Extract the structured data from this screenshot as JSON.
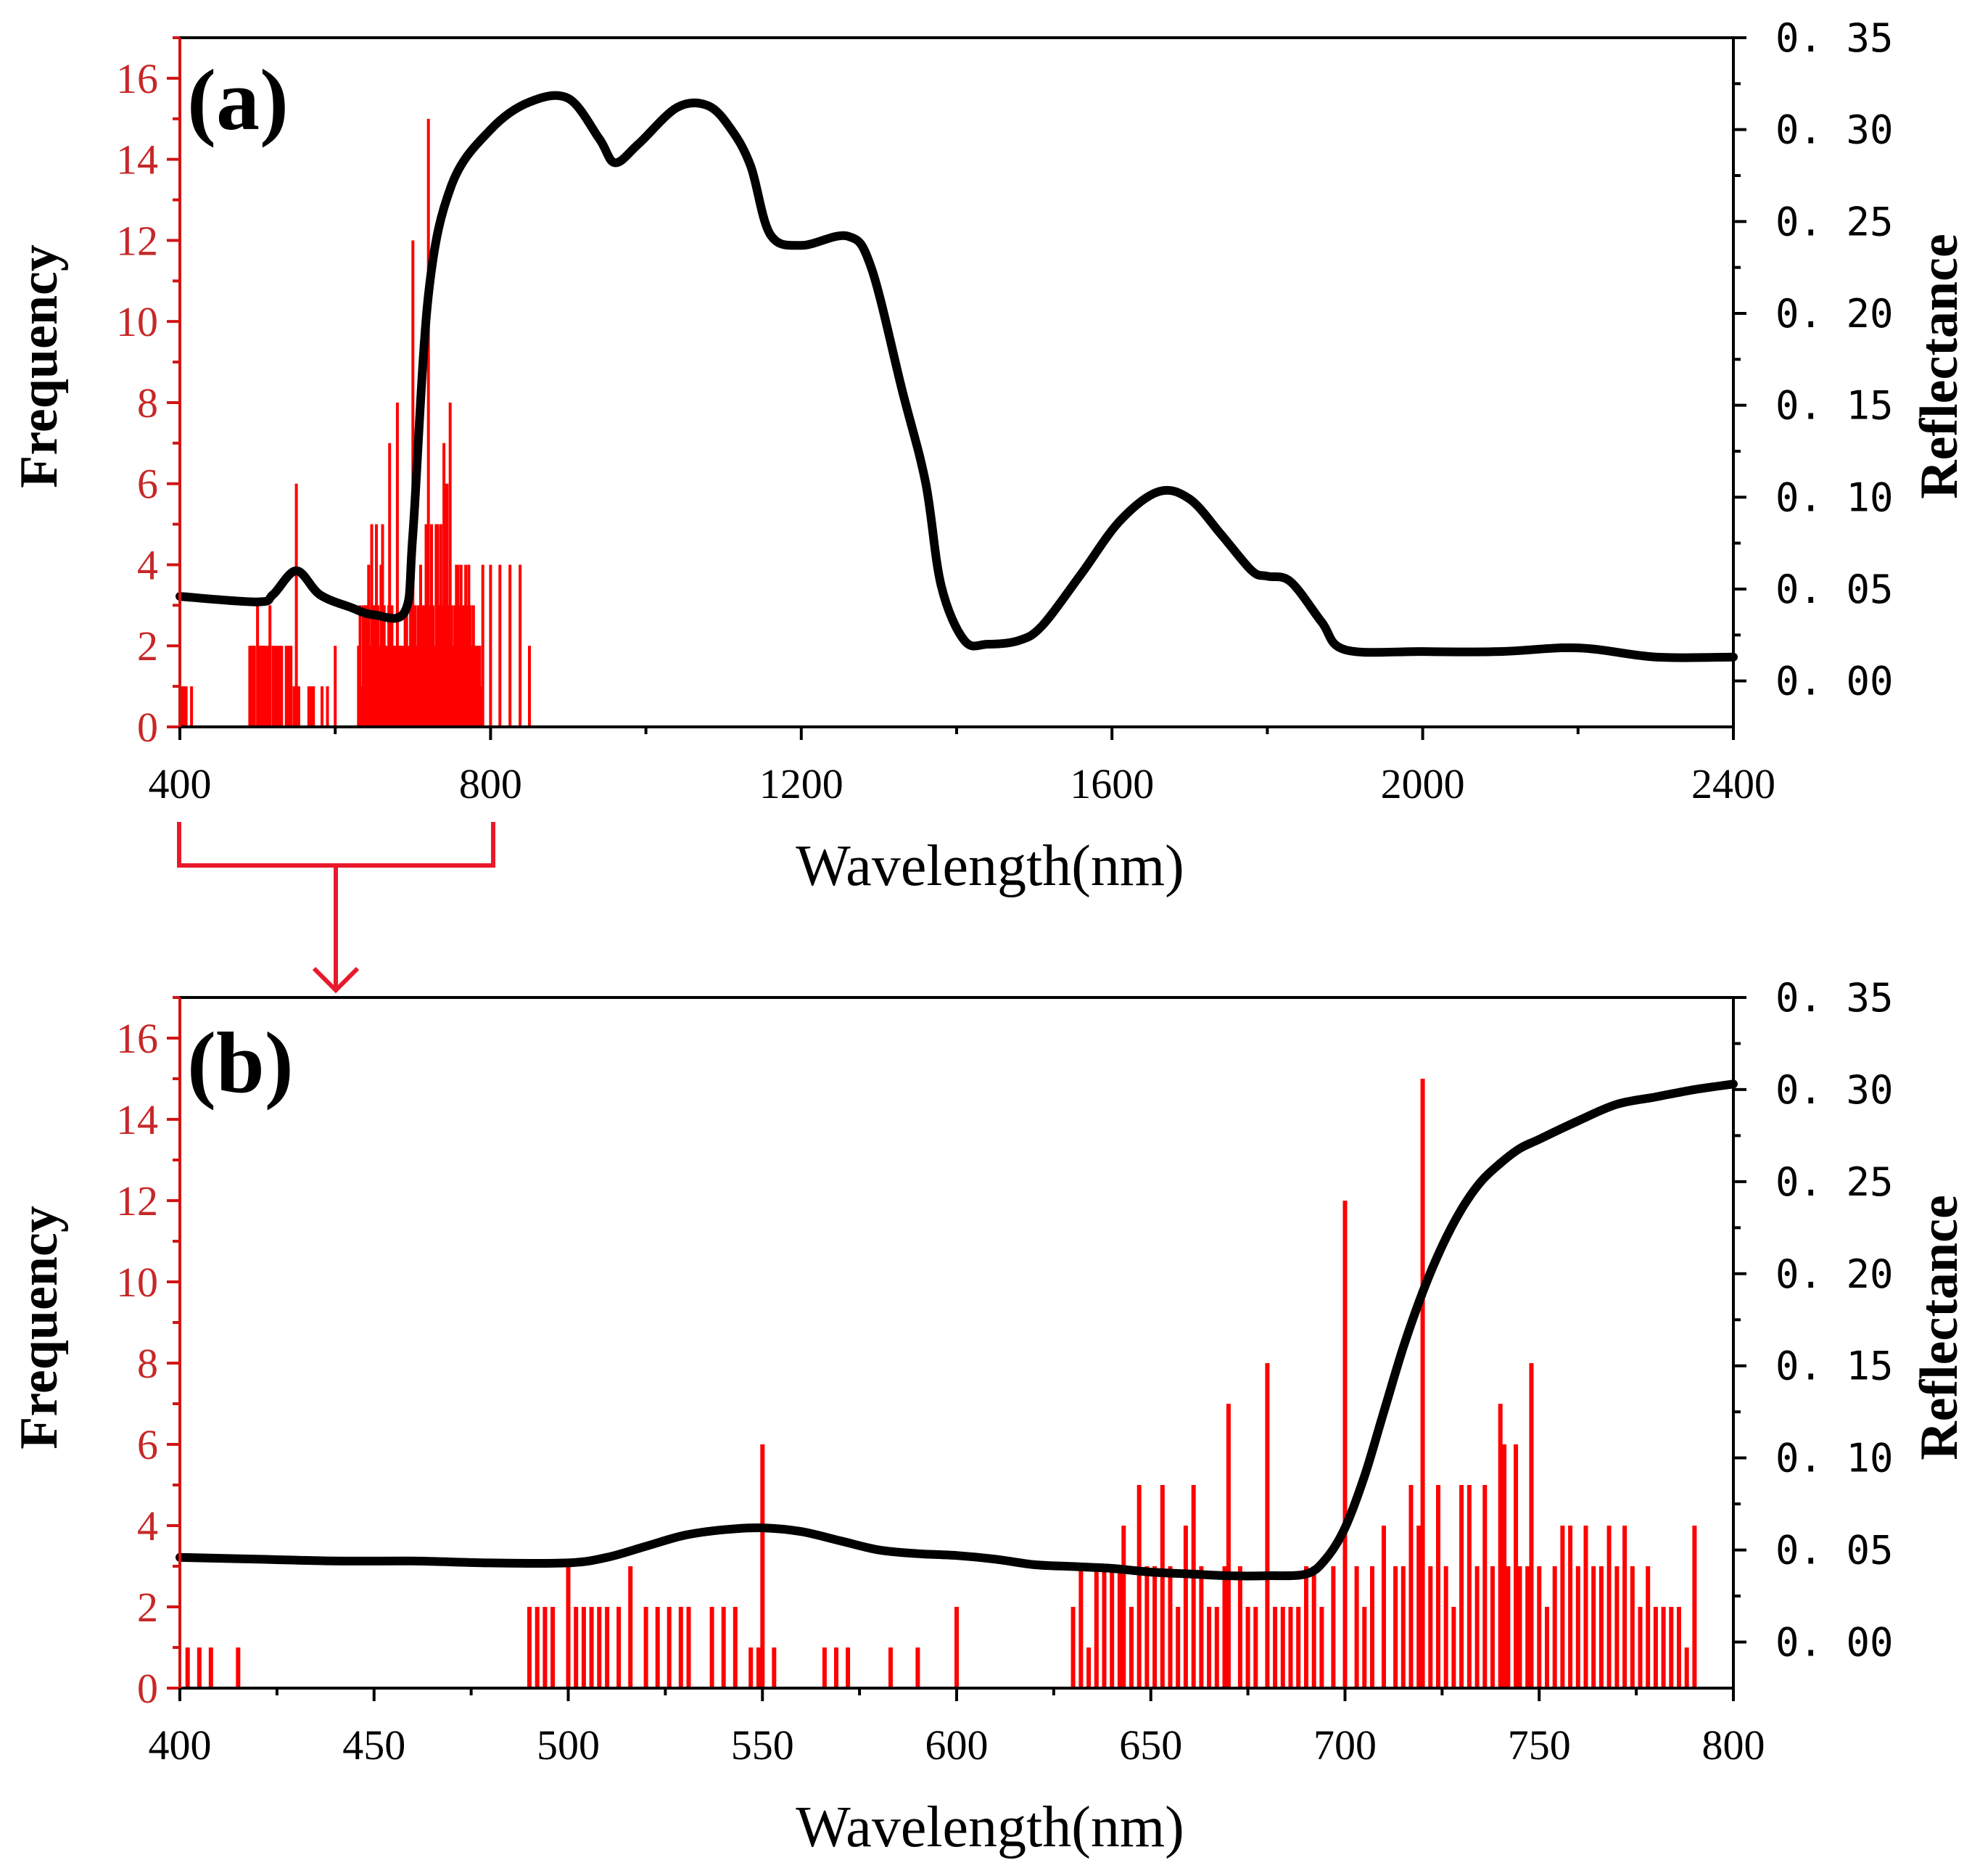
{
  "chart_data": [
    {
      "type": "bar",
      "panel_label": "(a)",
      "xlabel": "Wavelength(nm)",
      "ylabel": "Frequency",
      "y2label": "Reflectance",
      "xlim": [
        400,
        2400
      ],
      "ylim": [
        0,
        17
      ],
      "y2lim": [
        -0.025,
        0.35
      ],
      "xticks": [
        "400",
        "800",
        "1200",
        "1600",
        "2000",
        "2400"
      ],
      "yticks": [
        "0",
        "2",
        "4",
        "6",
        "8",
        "10",
        "12",
        "14",
        "16"
      ],
      "y2ticks": [
        "0. 00",
        "0. 05",
        "0. 10",
        "0. 15",
        "0. 20",
        "0. 25",
        "0. 30",
        "0. 35"
      ],
      "bar_color": "#ff0000",
      "line_color": "#000000",
      "bars": [
        [
          402,
          1
        ],
        [
          405,
          1
        ],
        [
          408,
          1
        ],
        [
          415,
          1
        ],
        [
          490,
          2
        ],
        [
          492,
          2
        ],
        [
          494,
          2
        ],
        [
          496,
          2
        ],
        [
          500,
          3
        ],
        [
          502,
          2
        ],
        [
          504,
          2
        ],
        [
          506,
          2
        ],
        [
          508,
          2
        ],
        [
          510,
          2
        ],
        [
          513,
          2
        ],
        [
          516,
          3
        ],
        [
          520,
          2
        ],
        [
          523,
          2
        ],
        [
          526,
          2
        ],
        [
          529,
          2
        ],
        [
          531,
          2
        ],
        [
          537,
          2
        ],
        [
          540,
          2
        ],
        [
          543,
          2
        ],
        [
          547,
          1
        ],
        [
          549,
          1
        ],
        [
          550,
          6
        ],
        [
          553,
          1
        ],
        [
          566,
          1
        ],
        [
          569,
          1
        ],
        [
          572,
          1
        ],
        [
          583,
          1
        ],
        [
          590,
          1
        ],
        [
          600,
          2
        ],
        [
          630,
          2
        ],
        [
          632,
          3
        ],
        [
          634,
          1
        ],
        [
          636,
          3
        ],
        [
          638,
          3
        ],
        [
          640,
          3
        ],
        [
          642,
          3
        ],
        [
          643,
          4
        ],
        [
          645,
          2
        ],
        [
          647,
          5
        ],
        [
          649,
          3
        ],
        [
          651,
          3
        ],
        [
          653,
          5
        ],
        [
          655,
          3
        ],
        [
          657,
          2
        ],
        [
          659,
          4
        ],
        [
          661,
          5
        ],
        [
          663,
          3
        ],
        [
          665,
          2
        ],
        [
          667,
          2
        ],
        [
          669,
          3
        ],
        [
          670,
          7
        ],
        [
          673,
          3
        ],
        [
          675,
          2
        ],
        [
          677,
          2
        ],
        [
          680,
          8
        ],
        [
          682,
          2
        ],
        [
          684,
          2
        ],
        [
          686,
          2
        ],
        [
          688,
          2
        ],
        [
          690,
          3
        ],
        [
          692,
          3
        ],
        [
          694,
          2
        ],
        [
          697,
          3
        ],
        [
          700,
          12
        ],
        [
          703,
          3
        ],
        [
          705,
          2
        ],
        [
          707,
          3
        ],
        [
          710,
          4
        ],
        [
          713,
          3
        ],
        [
          715,
          3
        ],
        [
          717,
          5
        ],
        [
          719,
          4
        ],
        [
          720,
          15
        ],
        [
          722,
          3
        ],
        [
          724,
          5
        ],
        [
          726,
          3
        ],
        [
          728,
          2
        ],
        [
          730,
          5
        ],
        [
          732,
          5
        ],
        [
          734,
          3
        ],
        [
          736,
          5
        ],
        [
          738,
          3
        ],
        [
          740,
          7
        ],
        [
          741,
          6
        ],
        [
          742,
          3
        ],
        [
          744,
          6
        ],
        [
          745,
          3
        ],
        [
          747,
          3
        ],
        [
          748,
          8
        ],
        [
          750,
          3
        ],
        [
          752,
          2
        ],
        [
          754,
          3
        ],
        [
          756,
          4
        ],
        [
          758,
          4
        ],
        [
          760,
          3
        ],
        [
          762,
          4
        ],
        [
          764,
          3
        ],
        [
          766,
          3
        ],
        [
          768,
          4
        ],
        [
          770,
          3
        ],
        [
          772,
          4
        ],
        [
          774,
          3
        ],
        [
          776,
          2
        ],
        [
          778,
          3
        ],
        [
          780,
          2
        ],
        [
          782,
          2
        ],
        [
          784,
          2
        ],
        [
          786,
          2
        ],
        [
          788,
          1
        ],
        [
          790,
          4
        ],
        [
          800,
          4
        ],
        [
          812,
          4
        ],
        [
          825,
          4
        ],
        [
          838,
          4
        ],
        [
          850,
          2
        ]
      ],
      "reflectance_curve": {
        "x": [
          400,
          500,
          520,
          550,
          580,
          620,
          650,
          690,
          700,
          720,
          750,
          800,
          850,
          900,
          940,
          960,
          990,
          1040,
          1080,
          1110,
          1135,
          1160,
          1200,
          1260,
          1290,
          1330,
          1360,
          1380,
          1410,
          1440,
          1480,
          1510,
          1560,
          1610,
          1660,
          1700,
          1740,
          1780,
          1800,
          1830,
          1870,
          1900,
          2000,
          2100,
          2200,
          2300,
          2400
        ],
        "y": [
          0.046,
          0.043,
          0.047,
          0.06,
          0.047,
          0.04,
          0.036,
          0.038,
          0.08,
          0.21,
          0.27,
          0.3,
          0.315,
          0.317,
          0.295,
          0.282,
          0.292,
          0.312,
          0.313,
          0.3,
          0.28,
          0.243,
          0.237,
          0.242,
          0.225,
          0.158,
          0.108,
          0.052,
          0.022,
          0.02,
          0.022,
          0.03,
          0.058,
          0.087,
          0.103,
          0.099,
          0.08,
          0.06,
          0.057,
          0.054,
          0.032,
          0.017,
          0.016,
          0.016,
          0.018,
          0.013,
          0.013
        ]
      }
    },
    {
      "type": "bar",
      "panel_label": "(b)",
      "xlabel": "Wavelength(nm)",
      "ylabel": "Frequency",
      "y2label": "Reflectance",
      "xlim": [
        400,
        800
      ],
      "ylim": [
        0,
        17
      ],
      "y2lim": [
        -0.025,
        0.35
      ],
      "xticks": [
        "400",
        "450",
        "500",
        "550",
        "600",
        "650",
        "700",
        "750",
        "800"
      ],
      "yticks": [
        "0",
        "2",
        "4",
        "6",
        "8",
        "10",
        "12",
        "14",
        "16"
      ],
      "y2ticks": [
        "0. 00",
        "0. 05",
        "0. 10",
        "0. 15",
        "0. 20",
        "0. 25",
        "0. 30",
        "0. 35"
      ],
      "bar_color": "#ff0000",
      "line_color": "#000000",
      "bars": [
        [
          402,
          1
        ],
        [
          405,
          1
        ],
        [
          408,
          1
        ],
        [
          415,
          1
        ],
        [
          490,
          2
        ],
        [
          492,
          2
        ],
        [
          494,
          2
        ],
        [
          496,
          2
        ],
        [
          500,
          3
        ],
        [
          502,
          2
        ],
        [
          504,
          2
        ],
        [
          506,
          2
        ],
        [
          508,
          2
        ],
        [
          510,
          2
        ],
        [
          513,
          2
        ],
        [
          516,
          3
        ],
        [
          520,
          2
        ],
        [
          523,
          2
        ],
        [
          526,
          2
        ],
        [
          529,
          2
        ],
        [
          531,
          2
        ],
        [
          537,
          2
        ],
        [
          540,
          2
        ],
        [
          543,
          2
        ],
        [
          547,
          1
        ],
        [
          549,
          1
        ],
        [
          550,
          6
        ],
        [
          553,
          1
        ],
        [
          566,
          1
        ],
        [
          569,
          1
        ],
        [
          572,
          1
        ],
        [
          583,
          1
        ],
        [
          590,
          1
        ],
        [
          600,
          2
        ],
        [
          630,
          2
        ],
        [
          632,
          3
        ],
        [
          634,
          1
        ],
        [
          636,
          3
        ],
        [
          638,
          3
        ],
        [
          640,
          3
        ],
        [
          642,
          3
        ],
        [
          643,
          4
        ],
        [
          645,
          2
        ],
        [
          647,
          5
        ],
        [
          649,
          3
        ],
        [
          651,
          3
        ],
        [
          653,
          5
        ],
        [
          655,
          3
        ],
        [
          657,
          2
        ],
        [
          659,
          4
        ],
        [
          661,
          5
        ],
        [
          663,
          3
        ],
        [
          665,
          2
        ],
        [
          667,
          2
        ],
        [
          669,
          3
        ],
        [
          670,
          7
        ],
        [
          673,
          3
        ],
        [
          675,
          2
        ],
        [
          677,
          2
        ],
        [
          680,
          8
        ],
        [
          682,
          2
        ],
        [
          684,
          2
        ],
        [
          686,
          2
        ],
        [
          688,
          2
        ],
        [
          690,
          3
        ],
        [
          692,
          3
        ],
        [
          694,
          2
        ],
        [
          697,
          3
        ],
        [
          700,
          12
        ],
        [
          703,
          3
        ],
        [
          705,
          2
        ],
        [
          707,
          3
        ],
        [
          710,
          4
        ],
        [
          713,
          3
        ],
        [
          715,
          3
        ],
        [
          717,
          5
        ],
        [
          719,
          4
        ],
        [
          720,
          15
        ],
        [
          722,
          3
        ],
        [
          724,
          5
        ],
        [
          726,
          3
        ],
        [
          728,
          2
        ],
        [
          730,
          5
        ],
        [
          732,
          5
        ],
        [
          734,
          3
        ],
        [
          736,
          5
        ],
        [
          738,
          3
        ],
        [
          740,
          7
        ],
        [
          741,
          6
        ],
        [
          742,
          3
        ],
        [
          744,
          6
        ],
        [
          745,
          3
        ],
        [
          747,
          3
        ],
        [
          748,
          8
        ],
        [
          750,
          3
        ],
        [
          752,
          2
        ],
        [
          754,
          3
        ],
        [
          756,
          4
        ],
        [
          758,
          4
        ],
        [
          760,
          3
        ],
        [
          762,
          4
        ],
        [
          764,
          3
        ],
        [
          766,
          3
        ],
        [
          768,
          4
        ],
        [
          770,
          3
        ],
        [
          772,
          4
        ],
        [
          774,
          3
        ],
        [
          776,
          2
        ],
        [
          778,
          3
        ],
        [
          780,
          2
        ],
        [
          782,
          2
        ],
        [
          784,
          2
        ],
        [
          786,
          2
        ],
        [
          788,
          1
        ],
        [
          790,
          4
        ]
      ],
      "reflectance_curve": {
        "x": [
          400,
          420,
          440,
          460,
          480,
          500,
          510,
          520,
          530,
          540,
          550,
          560,
          570,
          580,
          590,
          600,
          610,
          620,
          630,
          640,
          650,
          660,
          670,
          680,
          690,
          695,
          700,
          705,
          710,
          715,
          720,
          725,
          730,
          735,
          740,
          745,
          750,
          760,
          770,
          780,
          790,
          800
        ],
        "y": [
          0.046,
          0.045,
          0.044,
          0.044,
          0.043,
          0.043,
          0.046,
          0.052,
          0.058,
          0.061,
          0.062,
          0.06,
          0.055,
          0.05,
          0.048,
          0.047,
          0.045,
          0.042,
          0.041,
          0.04,
          0.038,
          0.037,
          0.036,
          0.036,
          0.037,
          0.045,
          0.062,
          0.09,
          0.125,
          0.16,
          0.19,
          0.215,
          0.235,
          0.25,
          0.26,
          0.268,
          0.273,
          0.283,
          0.292,
          0.296,
          0.3,
          0.303
        ]
      }
    }
  ]
}
